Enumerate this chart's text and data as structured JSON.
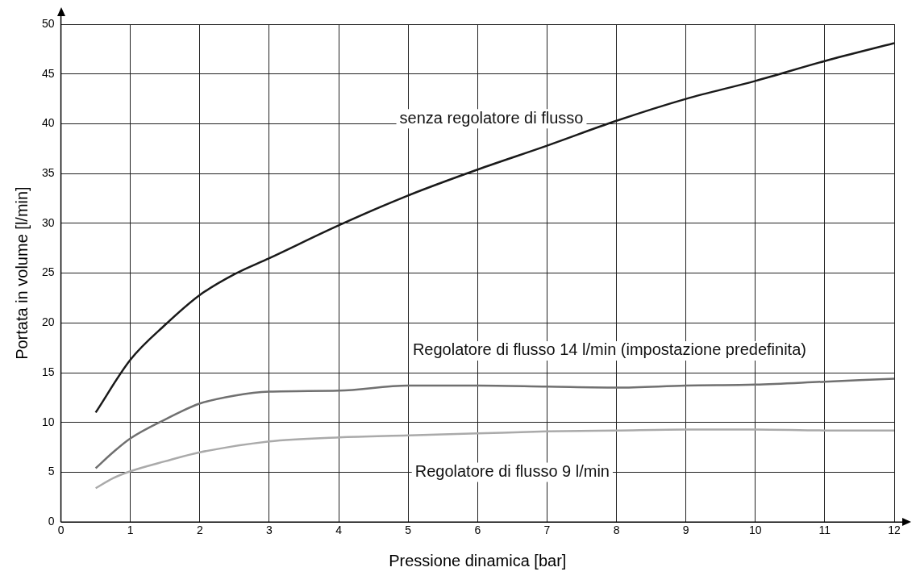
{
  "chart_data": {
    "type": "line",
    "xlabel": "Pressione dinamica [bar]",
    "ylabel": "Portata in volume [l/min]",
    "xlim": [
      0,
      12
    ],
    "ylim": [
      0,
      50
    ],
    "xticks": [
      0,
      1,
      2,
      3,
      4,
      5,
      6,
      7,
      8,
      9,
      10,
      11,
      12
    ],
    "yticks": [
      0,
      5,
      10,
      15,
      20,
      25,
      30,
      35,
      40,
      45,
      50
    ],
    "grid": true,
    "legend": false,
    "marker": "none",
    "line_style": "solid",
    "series": [
      {
        "name": "senza regolatore di flusso",
        "color": "#1a1a1a",
        "x": [
          0.5,
          1,
          1.5,
          2,
          2.5,
          3,
          4,
          5,
          6,
          7,
          8,
          9,
          10,
          11,
          12
        ],
        "values": [
          11,
          16.3,
          19.8,
          22.8,
          24.9,
          26.5,
          29.8,
          32.8,
          35.4,
          37.8,
          40.3,
          42.5,
          44.3,
          46.3,
          48.1
        ]
      },
      {
        "name": "Regolatore di flusso 14 l/min (impostazione predefinita)",
        "color": "#707070",
        "x": [
          0.5,
          0.75,
          1,
          1.5,
          2,
          2.5,
          3,
          4,
          5,
          6,
          7,
          8,
          9,
          10,
          11,
          12
        ],
        "values": [
          5.4,
          7,
          8.4,
          10.3,
          11.9,
          12.7,
          13.1,
          13.2,
          13.7,
          13.7,
          13.6,
          13.5,
          13.7,
          13.8,
          14.1,
          14.4
        ]
      },
      {
        "name": "Regolatore di flusso 9 l/min",
        "color": "#aaaaaa",
        "x": [
          0.5,
          0.75,
          1,
          1.5,
          2,
          3,
          4,
          5,
          6,
          7,
          8,
          9,
          10,
          11,
          12
        ],
        "values": [
          3.4,
          4.4,
          5.1,
          6.1,
          7,
          8.1,
          8.5,
          8.7,
          8.9,
          9.1,
          9.2,
          9.3,
          9.3,
          9.2,
          9.2
        ]
      }
    ]
  }
}
